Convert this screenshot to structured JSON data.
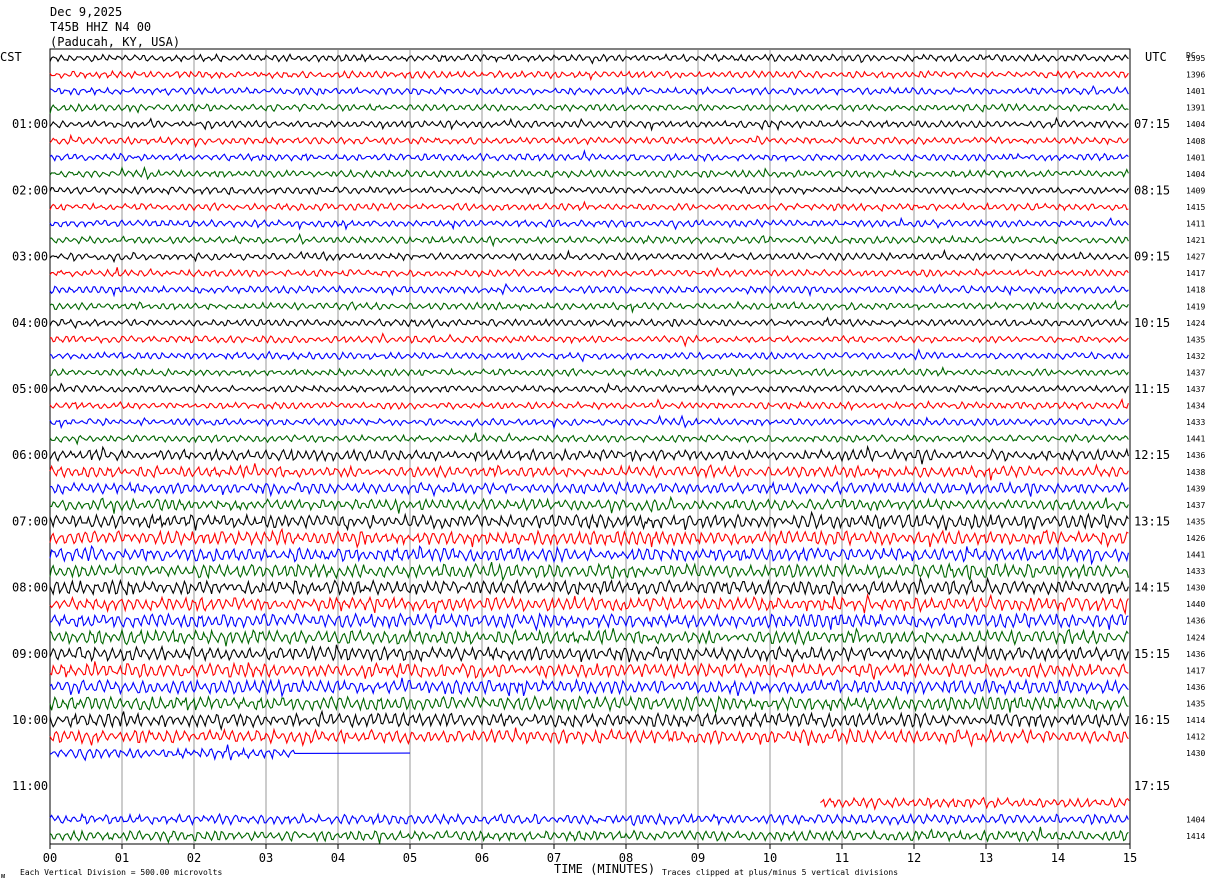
{
  "header": {
    "date": "Dec 9,2025",
    "station": "T45B HHZ N4 00",
    "location": "(Paducah, KY, USA)"
  },
  "left_axis_label": "CST",
  "right_axis_label": "UTC",
  "dc_label": "DC",
  "x_axis_title": "TIME (MINUTES)",
  "footer": {
    "division_note": "Each Vertical Division =  500.00 microvolts",
    "clip_note": "Traces clipped at plus/minus 5 vertical divisions"
  },
  "colors": {
    "black": "#000000",
    "red": "#ff0000",
    "blue": "#0000ff",
    "green": "#006600",
    "grid": "#808080"
  },
  "chart_data": {
    "type": "line",
    "x_ticks": [
      "00",
      "01",
      "02",
      "03",
      "04",
      "05",
      "06",
      "07",
      "08",
      "09",
      "10",
      "11",
      "12",
      "13",
      "14",
      "15"
    ],
    "x_range_minutes": [
      0,
      15
    ],
    "rows_per_hour": 4,
    "cst_hour_labels": [
      "01:00",
      "02:00",
      "03:00",
      "04:00",
      "05:00",
      "06:00",
      "07:00",
      "08:00",
      "09:00",
      "10:00",
      "11:00"
    ],
    "utc_hour_labels": [
      "07:15",
      "08:15",
      "09:15",
      "10:15",
      "11:15",
      "12:15",
      "13:15",
      "14:15",
      "15:15",
      "16:15",
      "17:15"
    ],
    "color_cycle": [
      "black",
      "red",
      "blue",
      "green"
    ],
    "traces": [
      {
        "row": 0,
        "dc": "1395",
        "start": 0,
        "end": 15
      },
      {
        "row": 1,
        "dc": "1396",
        "start": 0,
        "end": 15
      },
      {
        "row": 2,
        "dc": "1401",
        "start": 0,
        "end": 15
      },
      {
        "row": 3,
        "dc": "1391",
        "start": 0,
        "end": 15
      },
      {
        "row": 4,
        "dc": "1404",
        "start": 0,
        "end": 15
      },
      {
        "row": 5,
        "dc": "1408",
        "start": 0,
        "end": 15
      },
      {
        "row": 6,
        "dc": "1401",
        "start": 0,
        "end": 15
      },
      {
        "row": 7,
        "dc": "1404",
        "start": 0,
        "end": 15
      },
      {
        "row": 8,
        "dc": "1409",
        "start": 0,
        "end": 15
      },
      {
        "row": 9,
        "dc": "1415",
        "start": 0,
        "end": 15
      },
      {
        "row": 10,
        "dc": "1411",
        "start": 0,
        "end": 15
      },
      {
        "row": 11,
        "dc": "1421",
        "start": 0,
        "end": 15
      },
      {
        "row": 12,
        "dc": "1427",
        "start": 0,
        "end": 15
      },
      {
        "row": 13,
        "dc": "1417",
        "start": 0,
        "end": 15
      },
      {
        "row": 14,
        "dc": "1418",
        "start": 0,
        "end": 15
      },
      {
        "row": 15,
        "dc": "1419",
        "start": 0,
        "end": 15
      },
      {
        "row": 16,
        "dc": "1424",
        "start": 0,
        "end": 15
      },
      {
        "row": 17,
        "dc": "1435",
        "start": 0,
        "end": 15
      },
      {
        "row": 18,
        "dc": "1432",
        "start": 0,
        "end": 15
      },
      {
        "row": 19,
        "dc": "1437",
        "start": 0,
        "end": 15
      },
      {
        "row": 20,
        "dc": "1437",
        "start": 0,
        "end": 15
      },
      {
        "row": 21,
        "dc": "1434",
        "start": 0,
        "end": 15
      },
      {
        "row": 22,
        "dc": "1433",
        "start": 0,
        "end": 15
      },
      {
        "row": 23,
        "dc": "1441",
        "start": 0,
        "end": 15
      },
      {
        "row": 24,
        "dc": "1436",
        "start": 0,
        "end": 15
      },
      {
        "row": 25,
        "dc": "1438",
        "start": 0,
        "end": 15
      },
      {
        "row": 26,
        "dc": "1439",
        "start": 0,
        "end": 15
      },
      {
        "row": 27,
        "dc": "1437",
        "start": 0,
        "end": 15
      },
      {
        "row": 28,
        "dc": "1435",
        "start": 0,
        "end": 15
      },
      {
        "row": 29,
        "dc": "1426",
        "start": 0,
        "end": 15
      },
      {
        "row": 30,
        "dc": "1441",
        "start": 0,
        "end": 15
      },
      {
        "row": 31,
        "dc": "1433",
        "start": 0,
        "end": 15
      },
      {
        "row": 32,
        "dc": "1430",
        "start": 0,
        "end": 15
      },
      {
        "row": 33,
        "dc": "1440",
        "start": 0,
        "end": 15
      },
      {
        "row": 34,
        "dc": "1436",
        "start": 0,
        "end": 15
      },
      {
        "row": 35,
        "dc": "1424",
        "start": 0,
        "end": 15
      },
      {
        "row": 36,
        "dc": "1436",
        "start": 0,
        "end": 15
      },
      {
        "row": 37,
        "dc": "1417",
        "start": 0,
        "end": 15
      },
      {
        "row": 38,
        "dc": "1436",
        "start": 0,
        "end": 15
      },
      {
        "row": 39,
        "dc": "1435",
        "start": 0,
        "end": 15
      },
      {
        "row": 40,
        "dc": "1414",
        "start": 0,
        "end": 15
      },
      {
        "row": 41,
        "dc": "1412",
        "start": 0,
        "end": 15
      },
      {
        "row": 42,
        "dc": "1430",
        "start": 0,
        "end": 3.4,
        "flat_to": 5.0
      },
      {
        "row": 45,
        "dc": "",
        "start": 10.7,
        "end": 15
      },
      {
        "row": 46,
        "dc": "1404",
        "start": 0,
        "end": 15
      },
      {
        "row": 47,
        "dc": "1414",
        "start": 0,
        "end": 15
      }
    ]
  }
}
